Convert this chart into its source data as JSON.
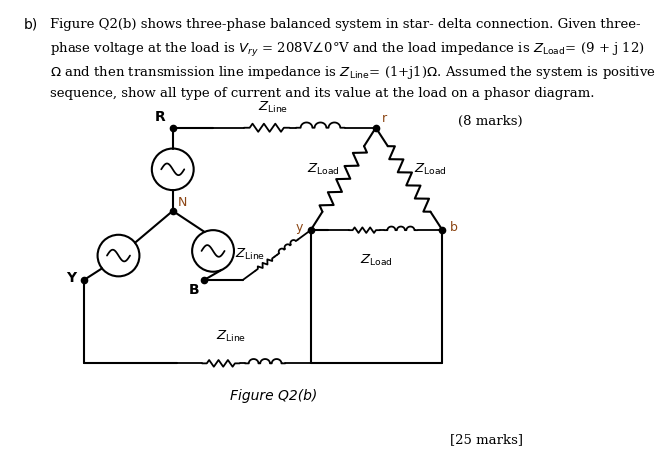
{
  "background_color": "#ffffff",
  "line_color": "#000000",
  "fig_label": "Figure Q2(b)",
  "node_labels": {
    "R": "R",
    "N": "N",
    "Y": "Y",
    "B": "B",
    "r": "r",
    "y": "y",
    "b": "b"
  },
  "marks_text": "(8 marks)",
  "bottom_marks": "[25 marks]",
  "header_lines": [
    "Figure Q2(b) shows three-phase balanced system in star- delta connection. Given three-",
    "phase voltage at the load is $V_{ry}$ = 208V$\\angle$0°V and the load impedance is $Z_{\\rm Load}$= (9 + j 12)",
    "$\\Omega$ and then transmission line impedance is $Z_{\\rm Line}$= (1+j1)$\\Omega$. Assumed the system is positive",
    "sequence, show all type of current and its value at the load on a phasor diagram."
  ]
}
